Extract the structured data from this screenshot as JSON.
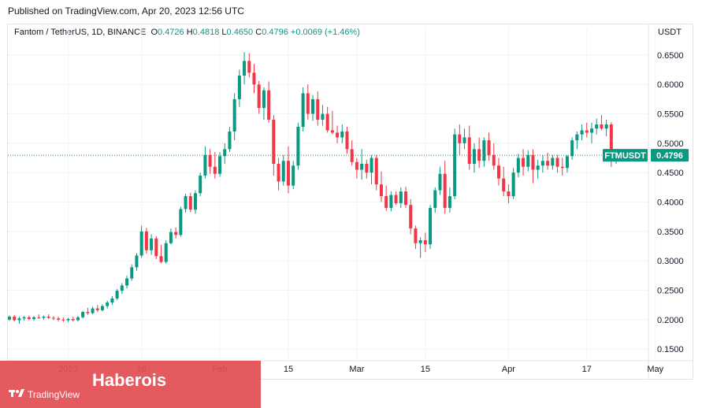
{
  "published": "Published on TradingView.com, Apr 20, 2023 12:56 UTC",
  "legend": {
    "symbol": "Fantom / TetherUS, 1D, BINANCE",
    "o_label": "O",
    "o": "0.4726",
    "h_label": "H",
    "h": "0.4818",
    "l_label": "L",
    "l": "0.4650",
    "c_label": "C",
    "c": "0.4796",
    "change": "+0.0069 (+1.46%)"
  },
  "unit": "USDT",
  "watermark": "Haberois",
  "brand": "TradingView",
  "colors": {
    "up": "#089981",
    "down": "#f23645",
    "grid": "#f0f3fa",
    "axis_text": "#131722",
    "banner": "#e24d52"
  },
  "icons": [
    "tradingview-logo-icon"
  ],
  "chart_data": {
    "type": "candlestick",
    "symbol_tag": "FTMUSDT",
    "last_price": 0.4796,
    "last_price_label": "0.4796",
    "ylim": [
      0.13,
      0.67
    ],
    "y_ticks": [
      {
        "value": 0.15,
        "label": "0.1500"
      },
      {
        "value": 0.2,
        "label": "0.2000"
      },
      {
        "value": 0.25,
        "label": "0.2500"
      },
      {
        "value": 0.3,
        "label": "0.3000"
      },
      {
        "value": 0.35,
        "label": "0.3500"
      },
      {
        "value": 0.4,
        "label": "0.4000"
      },
      {
        "value": 0.45,
        "label": "0.4500"
      },
      {
        "value": 0.5,
        "label": "0.5000"
      },
      {
        "value": 0.55,
        "label": "0.5500"
      },
      {
        "value": 0.6,
        "label": "0.6000"
      },
      {
        "value": 0.65,
        "label": "0.6500"
      }
    ],
    "x_ticks": [
      {
        "index": 12,
        "label": "2023"
      },
      {
        "index": 27,
        "label": "16"
      },
      {
        "index": 43,
        "label": "Feb"
      },
      {
        "index": 57,
        "label": "15"
      },
      {
        "index": 71,
        "label": "Mar"
      },
      {
        "index": 85,
        "label": "15"
      },
      {
        "index": 102,
        "label": "Apr"
      },
      {
        "index": 118,
        "label": "17"
      },
      {
        "index": 132,
        "label": "May"
      }
    ],
    "candles": [
      [
        0.2,
        0.207,
        0.198,
        0.205
      ],
      [
        0.205,
        0.208,
        0.197,
        0.199
      ],
      [
        0.199,
        0.205,
        0.193,
        0.202
      ],
      [
        0.202,
        0.206,
        0.198,
        0.204
      ],
      [
        0.204,
        0.207,
        0.199,
        0.201
      ],
      [
        0.201,
        0.206,
        0.198,
        0.204
      ],
      [
        0.204,
        0.209,
        0.201,
        0.203
      ],
      [
        0.203,
        0.207,
        0.2,
        0.205
      ],
      [
        0.205,
        0.209,
        0.201,
        0.203
      ],
      [
        0.203,
        0.206,
        0.199,
        0.202
      ],
      [
        0.202,
        0.205,
        0.197,
        0.2
      ],
      [
        0.2,
        0.204,
        0.196,
        0.199
      ],
      [
        0.199,
        0.203,
        0.196,
        0.201
      ],
      [
        0.201,
        0.205,
        0.197,
        0.199
      ],
      [
        0.199,
        0.206,
        0.197,
        0.204
      ],
      [
        0.204,
        0.215,
        0.202,
        0.213
      ],
      [
        0.213,
        0.22,
        0.208,
        0.211
      ],
      [
        0.211,
        0.222,
        0.209,
        0.219
      ],
      [
        0.219,
        0.225,
        0.213,
        0.216
      ],
      [
        0.216,
        0.226,
        0.214,
        0.223
      ],
      [
        0.223,
        0.232,
        0.219,
        0.229
      ],
      [
        0.229,
        0.24,
        0.225,
        0.236
      ],
      [
        0.236,
        0.252,
        0.233,
        0.249
      ],
      [
        0.249,
        0.262,
        0.244,
        0.258
      ],
      [
        0.258,
        0.275,
        0.253,
        0.27
      ],
      [
        0.27,
        0.294,
        0.266,
        0.289
      ],
      [
        0.289,
        0.313,
        0.283,
        0.309
      ],
      [
        0.309,
        0.36,
        0.305,
        0.35
      ],
      [
        0.35,
        0.356,
        0.312,
        0.318
      ],
      [
        0.318,
        0.345,
        0.31,
        0.338
      ],
      [
        0.338,
        0.342,
        0.303,
        0.308
      ],
      [
        0.308,
        0.327,
        0.296,
        0.298
      ],
      [
        0.298,
        0.335,
        0.295,
        0.33
      ],
      [
        0.33,
        0.355,
        0.328,
        0.349
      ],
      [
        0.349,
        0.357,
        0.338,
        0.344
      ],
      [
        0.344,
        0.392,
        0.341,
        0.388
      ],
      [
        0.388,
        0.414,
        0.382,
        0.41
      ],
      [
        0.41,
        0.416,
        0.383,
        0.387
      ],
      [
        0.387,
        0.42,
        0.38,
        0.415
      ],
      [
        0.415,
        0.45,
        0.41,
        0.445
      ],
      [
        0.445,
        0.495,
        0.44,
        0.48
      ],
      [
        0.48,
        0.49,
        0.448,
        0.46
      ],
      [
        0.46,
        0.485,
        0.44,
        0.448
      ],
      [
        0.448,
        0.485,
        0.443,
        0.478
      ],
      [
        0.478,
        0.5,
        0.465,
        0.49
      ],
      [
        0.49,
        0.528,
        0.485,
        0.52
      ],
      [
        0.52,
        0.585,
        0.505,
        0.575
      ],
      [
        0.575,
        0.625,
        0.562,
        0.615
      ],
      [
        0.615,
        0.655,
        0.6,
        0.64
      ],
      [
        0.64,
        0.653,
        0.612,
        0.62
      ],
      [
        0.62,
        0.635,
        0.585,
        0.6
      ],
      [
        0.6,
        0.606,
        0.55,
        0.56
      ],
      [
        0.56,
        0.595,
        0.54,
        0.59
      ],
      [
        0.59,
        0.605,
        0.535,
        0.54
      ],
      [
        0.54,
        0.548,
        0.445,
        0.465
      ],
      [
        0.465,
        0.475,
        0.42,
        0.435
      ],
      [
        0.435,
        0.48,
        0.428,
        0.47
      ],
      [
        0.47,
        0.495,
        0.415,
        0.428
      ],
      [
        0.428,
        0.47,
        0.422,
        0.462
      ],
      [
        0.462,
        0.535,
        0.455,
        0.528
      ],
      [
        0.528,
        0.595,
        0.52,
        0.585
      ],
      [
        0.585,
        0.6,
        0.54,
        0.55
      ],
      [
        0.55,
        0.582,
        0.538,
        0.575
      ],
      [
        0.575,
        0.588,
        0.53,
        0.54
      ],
      [
        0.54,
        0.565,
        0.53,
        0.55
      ],
      [
        0.55,
        0.562,
        0.518,
        0.522
      ],
      [
        0.522,
        0.555,
        0.515,
        0.518
      ],
      [
        0.518,
        0.53,
        0.5,
        0.51
      ],
      [
        0.51,
        0.532,
        0.5,
        0.52
      ],
      [
        0.52,
        0.528,
        0.482,
        0.49
      ],
      [
        0.49,
        0.505,
        0.462,
        0.468
      ],
      [
        0.468,
        0.475,
        0.44,
        0.455
      ],
      [
        0.455,
        0.49,
        0.438,
        0.465
      ],
      [
        0.465,
        0.472,
        0.44,
        0.45
      ],
      [
        0.45,
        0.48,
        0.43,
        0.475
      ],
      [
        0.475,
        0.48,
        0.42,
        0.43
      ],
      [
        0.43,
        0.452,
        0.4,
        0.41
      ],
      [
        0.41,
        0.428,
        0.385,
        0.39
      ],
      [
        0.39,
        0.418,
        0.384,
        0.412
      ],
      [
        0.412,
        0.418,
        0.395,
        0.398
      ],
      [
        0.398,
        0.425,
        0.39,
        0.418
      ],
      [
        0.418,
        0.426,
        0.39,
        0.395
      ],
      [
        0.395,
        0.405,
        0.345,
        0.355
      ],
      [
        0.355,
        0.36,
        0.32,
        0.33
      ],
      [
        0.33,
        0.34,
        0.305,
        0.335
      ],
      [
        0.335,
        0.348,
        0.315,
        0.328
      ],
      [
        0.328,
        0.395,
        0.32,
        0.39
      ],
      [
        0.39,
        0.425,
        0.382,
        0.42
      ],
      [
        0.42,
        0.46,
        0.412,
        0.448
      ],
      [
        0.448,
        0.47,
        0.38,
        0.39
      ],
      [
        0.39,
        0.425,
        0.382,
        0.41
      ],
      [
        0.41,
        0.525,
        0.405,
        0.515
      ],
      [
        0.515,
        0.532,
        0.48,
        0.5
      ],
      [
        0.5,
        0.525,
        0.49,
        0.51
      ],
      [
        0.51,
        0.53,
        0.455,
        0.465
      ],
      [
        0.465,
        0.5,
        0.45,
        0.49
      ],
      [
        0.49,
        0.51,
        0.458,
        0.47
      ],
      [
        0.47,
        0.51,
        0.46,
        0.505
      ],
      [
        0.505,
        0.518,
        0.47,
        0.48
      ],
      [
        0.48,
        0.5,
        0.455,
        0.462
      ],
      [
        0.462,
        0.475,
        0.428,
        0.44
      ],
      [
        0.44,
        0.46,
        0.41,
        0.418
      ],
      [
        0.418,
        0.43,
        0.398,
        0.41
      ],
      [
        0.41,
        0.458,
        0.405,
        0.45
      ],
      [
        0.45,
        0.482,
        0.442,
        0.475
      ],
      [
        0.475,
        0.49,
        0.445,
        0.46
      ],
      [
        0.46,
        0.488,
        0.452,
        0.48
      ],
      [
        0.48,
        0.49,
        0.432,
        0.455
      ],
      [
        0.455,
        0.472,
        0.44,
        0.462
      ],
      [
        0.462,
        0.48,
        0.45,
        0.47
      ],
      [
        0.47,
        0.484,
        0.455,
        0.462
      ],
      [
        0.462,
        0.48,
        0.455,
        0.475
      ],
      [
        0.475,
        0.48,
        0.45,
        0.46
      ],
      [
        0.46,
        0.475,
        0.445,
        0.458
      ],
      [
        0.458,
        0.48,
        0.45,
        0.478
      ],
      [
        0.478,
        0.51,
        0.472,
        0.505
      ],
      [
        0.505,
        0.52,
        0.49,
        0.515
      ],
      [
        0.515,
        0.532,
        0.505,
        0.522
      ],
      [
        0.522,
        0.535,
        0.51,
        0.518
      ],
      [
        0.518,
        0.535,
        0.5,
        0.525
      ],
      [
        0.525,
        0.542,
        0.515,
        0.532
      ],
      [
        0.532,
        0.548,
        0.522,
        0.525
      ],
      [
        0.525,
        0.54,
        0.512,
        0.532
      ],
      [
        0.532,
        0.536,
        0.46,
        0.472
      ],
      [
        0.4726,
        0.4818,
        0.465,
        0.4796
      ]
    ]
  }
}
